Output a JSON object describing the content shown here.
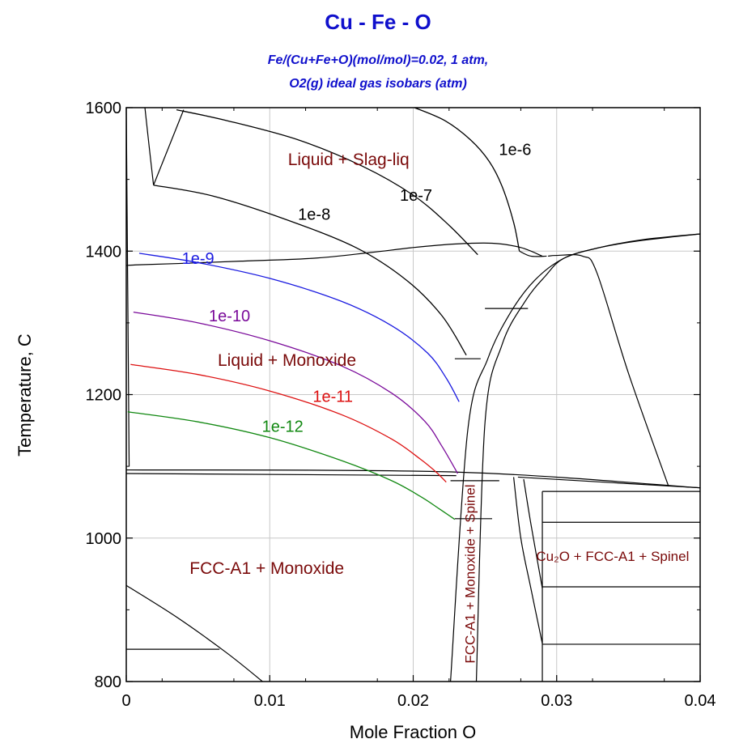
{
  "chart_data": {
    "type": "line",
    "title": "Cu - Fe - O",
    "subtitle_lines": [
      "Fe/(Cu+Fe+O)(mol/mol)=0.02, 1 atm,",
      "O2(g) ideal gas isobars (atm)"
    ],
    "xlabel": "Mole Fraction O",
    "ylabel": "Temperature, C",
    "xlim": [
      0,
      0.04
    ],
    "ylim": [
      800,
      1600
    ],
    "xticks": [
      "0",
      "0.01",
      "0.02",
      "0.03",
      "0.04"
    ],
    "yticks": [
      "800",
      "1000",
      "1200",
      "1400",
      "1600"
    ],
    "grid": true,
    "colors": {
      "boundary": "#000000",
      "iso_1e-9": "#1a1ae0",
      "iso_1e-10": "#7a0a9a",
      "iso_1e-11": "#dd1111",
      "iso_1e-12": "#118811",
      "region_label": "#7a0a0a",
      "title": "#1010cc"
    },
    "region_labels": [
      {
        "text": "Liquid + Slag-liq",
        "x": 0.0155,
        "y": 1520
      },
      {
        "text": "Liquid + Monoxide",
        "x": 0.0112,
        "y": 1240
      },
      {
        "text": "FCC-A1 + Monoxide",
        "x": 0.0098,
        "y": 950
      },
      {
        "text": "FCC-A1 + Monoxide + Spinel",
        "x": 0.0243,
        "y": 950,
        "rotation": -90
      },
      {
        "text": "Cu₂O + FCC-A1 + Spinel",
        "x": 0.0339,
        "y": 968
      }
    ],
    "isobar_labels": [
      {
        "text": "1e-6",
        "x": 0.0271,
        "y": 1534,
        "color": "#000000"
      },
      {
        "text": "1e-7",
        "x": 0.0202,
        "y": 1470,
        "color": "#000000"
      },
      {
        "text": "1e-8",
        "x": 0.0131,
        "y": 1444,
        "color": "#000000"
      },
      {
        "text": "1e-9",
        "x": 0.005,
        "y": 1382,
        "color": "#1a1ae0"
      },
      {
        "text": "1e-10",
        "x": 0.0072,
        "y": 1302,
        "color": "#7a0a9a"
      },
      {
        "text": "1e-11",
        "x": 0.0144,
        "y": 1190,
        "color": "#dd1111"
      },
      {
        "text": "1e-12",
        "x": 0.0109,
        "y": 1148,
        "color": "#118811"
      }
    ],
    "series": [
      {
        "name": "1e-6",
        "color": "#000000",
        "x": [
          0.0201,
          0.0222,
          0.024,
          0.0253,
          0.0262,
          0.027,
          0.0274
        ],
        "y": [
          1600,
          1582,
          1555,
          1525,
          1490,
          1440,
          1400
        ]
      },
      {
        "name": "1e-7",
        "color": "#000000",
        "x": [
          0.0035,
          0.007,
          0.012,
          0.0165,
          0.02,
          0.0225,
          0.0245
        ],
        "y": [
          1597,
          1582,
          1555,
          1518,
          1478,
          1436,
          1395
        ]
      },
      {
        "name": "1e-8",
        "color": "#000000",
        "x": [
          0.0019,
          0.006,
          0.011,
          0.016,
          0.0195,
          0.022,
          0.0237
        ],
        "y": [
          1492,
          1477,
          1445,
          1405,
          1360,
          1310,
          1255
        ]
      },
      {
        "name": "1e-9",
        "color": "#1a1ae0",
        "x": [
          0.0009,
          0.005,
          0.01,
          0.015,
          0.0185,
          0.021,
          0.0223,
          0.0232
        ],
        "y": [
          1397,
          1384,
          1362,
          1330,
          1296,
          1258,
          1223,
          1190
        ]
      },
      {
        "name": "1e-10",
        "color": "#7a0a9a",
        "x": [
          0.0005,
          0.005,
          0.01,
          0.015,
          0.0185,
          0.0208,
          0.022,
          0.0231
        ],
        "y": [
          1315,
          1300,
          1275,
          1240,
          1202,
          1163,
          1128,
          1090
        ]
      },
      {
        "name": "1e-11",
        "color": "#dd1111",
        "x": [
          0.0003,
          0.005,
          0.01,
          0.015,
          0.0185,
          0.0205,
          0.0216,
          0.0223
        ],
        "y": [
          1242,
          1228,
          1205,
          1172,
          1138,
          1110,
          1092,
          1078
        ]
      },
      {
        "name": "1e-12",
        "color": "#118811",
        "x": [
          0.0001,
          0.005,
          0.01,
          0.015,
          0.0185,
          0.0205,
          0.0218,
          0.0229
        ],
        "y": [
          1176,
          1162,
          1140,
          1108,
          1080,
          1058,
          1041,
          1026
        ]
      }
    ],
    "boundaries": [
      {
        "x": [
          0.0,
          0.0009,
          0.004,
          0.008,
          0.013,
          0.017,
          0.02,
          0.023,
          0.0255,
          0.0275,
          0.029
        ],
        "y": [
          1380,
          1381,
          1383,
          1386,
          1390,
          1398,
          1405,
          1410,
          1411,
          1405,
          1393
        ]
      },
      {
        "x": [
          0.0013,
          0.0016,
          0.0019
        ],
        "y": [
          1600,
          1545,
          1492
        ]
      },
      {
        "x": [
          0.0019,
          0.004
        ],
        "y": [
          1492,
          1597
        ]
      },
      {
        "x": [
          0.0226,
          0.0238,
          0.0252,
          0.0268,
          0.0285,
          0.0305,
          0.033,
          0.036,
          0.04
        ],
        "y": [
          800,
          1150,
          1250,
          1315,
          1360,
          1390,
          1405,
          1416,
          1424
        ]
      },
      {
        "x": [
          0.0244,
          0.025,
          0.0262,
          0.0278,
          0.0292,
          0.0305,
          0.033,
          0.036,
          0.04
        ],
        "y": [
          800,
          1160,
          1270,
          1330,
          1365,
          1390,
          1405,
          1415,
          1424
        ]
      },
      {
        "x": [
          0.0294,
          0.03,
          0.0318,
          0.0328,
          0.035,
          0.0378
        ],
        "y": [
          1393,
          1394,
          1393,
          1370,
          1230,
          1072
        ]
      },
      {
        "x": [
          0.0274,
          0.0282,
          0.0293
        ],
        "y": [
          1400,
          1393,
          1393
        ]
      },
      {
        "x": [
          0.0,
          0.023,
          0.04
        ],
        "y": [
          1095,
          1092,
          1070
        ]
      },
      {
        "x": [
          0.0,
          0.023
        ],
        "y": [
          1090,
          1087
        ]
      },
      {
        "x": [
          0.0226,
          0.026
        ],
        "y": [
          1080,
          1080
        ]
      },
      {
        "x": [
          0.0229,
          0.0255
        ],
        "y": [
          1027,
          1027
        ]
      },
      {
        "x": [
          0.0229,
          0.0247
        ],
        "y": [
          1250,
          1250
        ]
      },
      {
        "x": [
          0.025,
          0.028
        ],
        "y": [
          1320,
          1320
        ]
      },
      {
        "x": [
          0.0273,
          0.04
        ],
        "y": [
          1085,
          1070
        ]
      },
      {
        "x": [
          0.029,
          0.04
        ],
        "y": [
          1065,
          1065
        ]
      },
      {
        "x": [
          0.029,
          0.04
        ],
        "y": [
          1022,
          1022
        ]
      },
      {
        "x": [
          0.029,
          0.04
        ],
        "y": [
          932,
          932
        ]
      },
      {
        "x": [
          0.029,
          0.04
        ],
        "y": [
          852,
          852
        ]
      },
      {
        "x": [
          0.029,
          0.029
        ],
        "y": [
          1065,
          800
        ]
      },
      {
        "x": [
          0.027,
          0.0275,
          0.0282,
          0.029
        ],
        "y": [
          1085,
          1000,
          930,
          853
        ]
      },
      {
        "x": [
          0.0277,
          0.0282,
          0.029
        ],
        "y": [
          1082,
          1020,
          930
        ]
      },
      {
        "x": [
          0.0,
          0.0035,
          0.007,
          0.0095
        ],
        "y": [
          934,
          890,
          840,
          800
        ]
      },
      {
        "x": [
          0.0,
          0.0065
        ],
        "y": [
          845,
          845
        ]
      },
      {
        "x": [
          0.0,
          0.0001,
          0.0002
        ],
        "y": [
          1600,
          1350,
          1100
        ]
      }
    ]
  }
}
